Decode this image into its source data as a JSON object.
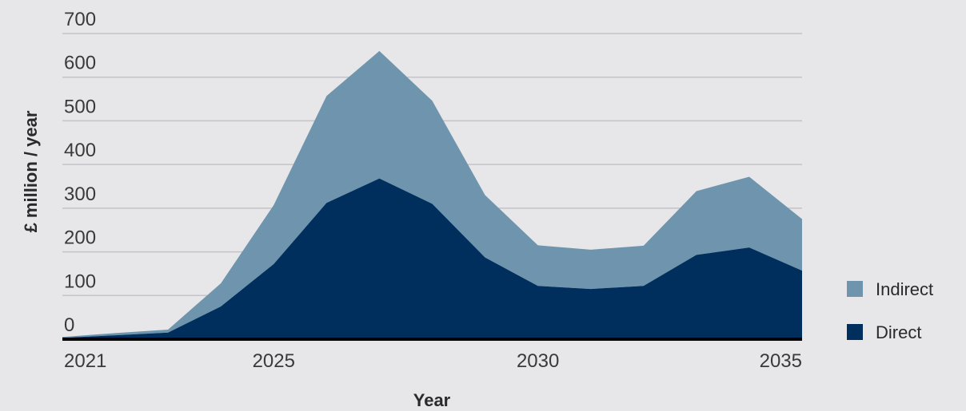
{
  "chart_data": {
    "type": "area",
    "stacked": true,
    "x": [
      2021,
      2022,
      2023,
      2024,
      2025,
      2026,
      2027,
      2028,
      2029,
      2030,
      2031,
      2032,
      2033,
      2034,
      2035
    ],
    "series": [
      {
        "name": "Direct",
        "color": "#002f5d",
        "values": [
          3,
          9,
          15,
          75,
          172,
          312,
          368,
          310,
          187,
          122,
          115,
          122,
          193,
          210,
          157
        ]
      },
      {
        "name": "Indirect",
        "color": "#6e95ad",
        "values": [
          2,
          5,
          7,
          53,
          135,
          245,
          292,
          236,
          143,
          93,
          90,
          92,
          146,
          162,
          118
        ]
      }
    ],
    "x_ticks": [
      "2021",
      "2025",
      "2030",
      "2035"
    ],
    "y_ticks": [
      "0",
      "100",
      "200",
      "300",
      "400",
      "500",
      "600",
      "700"
    ],
    "xlabel": "Year",
    "ylabel": "£ million / year",
    "ylim": [
      0,
      700
    ],
    "xlim": [
      2021,
      2035
    ],
    "grid": "horizontal",
    "legend_placement": "right-bottom",
    "legend": [
      {
        "name": "Indirect",
        "color": "#6e95ad"
      },
      {
        "name": "Direct",
        "color": "#002f5d"
      }
    ]
  }
}
